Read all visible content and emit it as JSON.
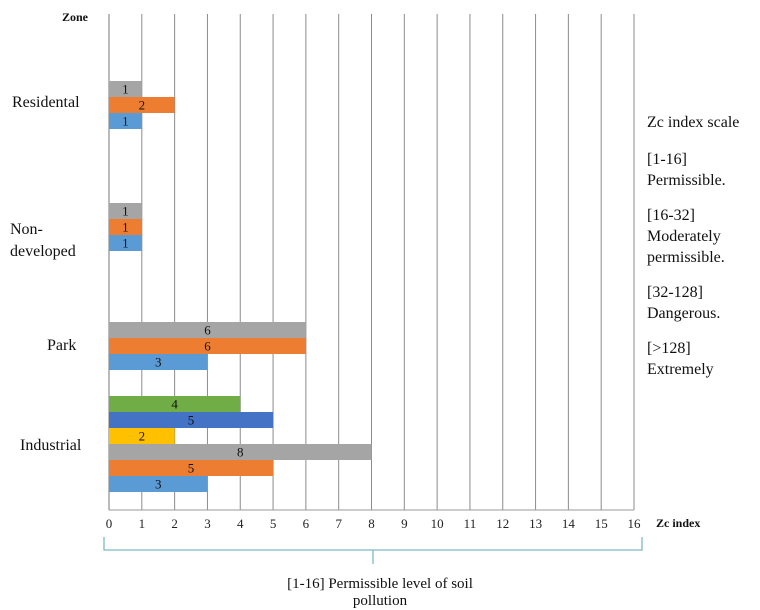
{
  "chart_data": {
    "type": "bar",
    "orientation": "horizontal",
    "ylabel": "Zone",
    "xlabel": "Zc index",
    "xlim": [
      0,
      16
    ],
    "xticks": [
      0,
      1,
      2,
      3,
      4,
      5,
      6,
      7,
      8,
      9,
      10,
      11,
      12,
      13,
      14,
      15,
      16
    ],
    "grid": "vertical",
    "categories": [
      "Residental",
      "Non-developed",
      "Park",
      "Industrial"
    ],
    "groups": [
      {
        "category": "Residental",
        "bars": [
          {
            "value": 1,
            "color": "#A5A5A5"
          },
          {
            "value": 2,
            "color": "#ED7D31"
          },
          {
            "value": 1,
            "color": "#5B9BD5"
          }
        ]
      },
      {
        "category": "Non-developed",
        "bars": [
          {
            "value": 1,
            "color": "#A5A5A5"
          },
          {
            "value": 1,
            "color": "#ED7D31"
          },
          {
            "value": 1,
            "color": "#5B9BD5"
          }
        ]
      },
      {
        "category": "Park",
        "bars": [
          {
            "value": 6,
            "color": "#A5A5A5"
          },
          {
            "value": 6,
            "color": "#ED7D31"
          },
          {
            "value": 3,
            "color": "#5B9BD5"
          }
        ]
      },
      {
        "category": "Industrial",
        "bars": [
          {
            "value": 4,
            "color": "#70AD47"
          },
          {
            "value": 5,
            "color": "#4472C4"
          },
          {
            "value": 2,
            "color": "#FFC000"
          },
          {
            "value": 8,
            "color": "#A5A5A5"
          },
          {
            "value": 5,
            "color": "#ED7D31"
          },
          {
            "value": 3,
            "color": "#5B9BD5"
          }
        ]
      }
    ],
    "legend_title": "Zc index scale",
    "legend_placement": "right",
    "scale_items": [
      {
        "range": "[1-16]",
        "label": "Permissible."
      },
      {
        "range": "[16-32]",
        "label": "Moderately permissible."
      },
      {
        "range": "[32-128]",
        "label": "Dangerous."
      },
      {
        "range": "[>128]",
        "label": "Extremely"
      }
    ],
    "annotation": "[1-16] Permissible level of soil pollution",
    "grid_color": "#8C8C8C",
    "bracket_color": "#7FB9C4"
  }
}
